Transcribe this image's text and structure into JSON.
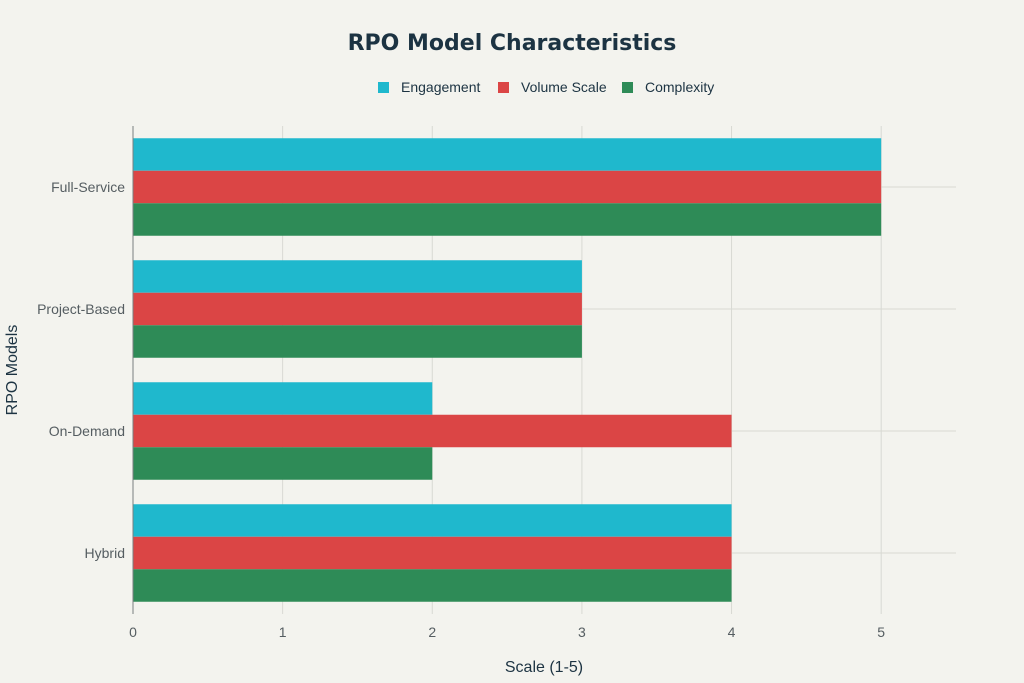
{
  "chart_data": {
    "type": "bar",
    "orientation": "horizontal",
    "title": "RPO Model Characteristics",
    "xlabel": "Scale (1-5)",
    "ylabel": "RPO Models",
    "categories": [
      "Full-Service",
      "Project-Based",
      "On-Demand",
      "Hybrid"
    ],
    "series": [
      {
        "name": "Engagement",
        "color": "#1fb8cd",
        "values": [
          5,
          3,
          2,
          4
        ]
      },
      {
        "name": "Volume Scale",
        "color": "#db4545",
        "values": [
          5,
          3,
          4,
          4
        ]
      },
      {
        "name": "Complexity",
        "color": "#2e8b57",
        "values": [
          5,
          3,
          2,
          4
        ]
      }
    ],
    "xlim": [
      0,
      5.5
    ],
    "xticks": [
      0,
      1,
      2,
      3,
      4,
      5
    ],
    "grid": true,
    "legend_position": "top-center"
  }
}
